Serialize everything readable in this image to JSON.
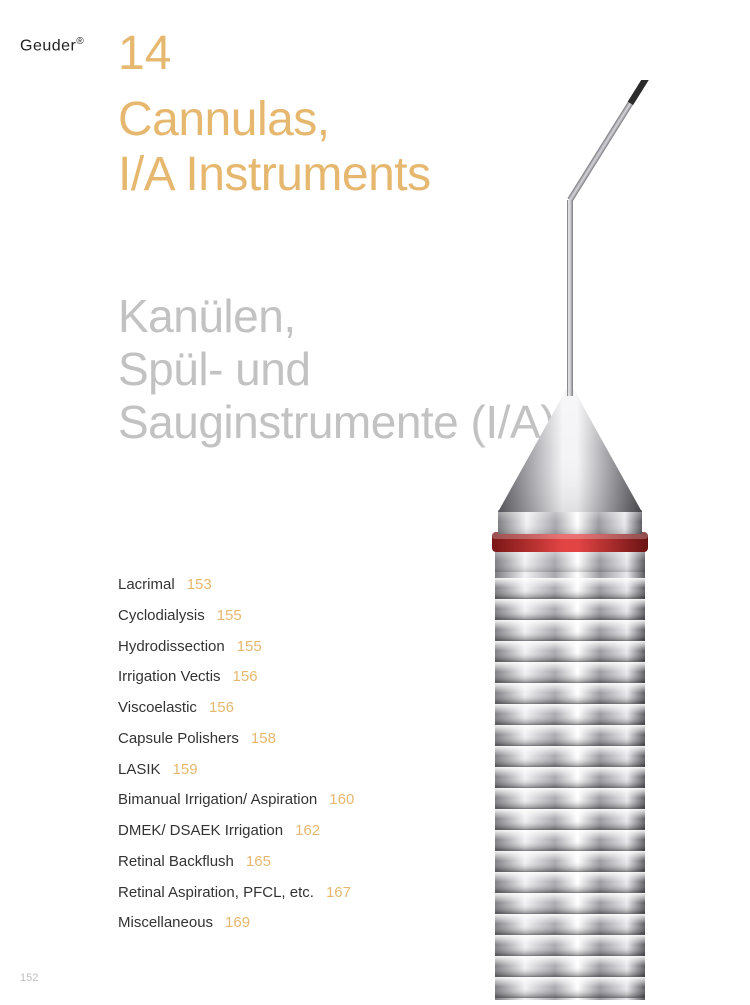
{
  "brand": {
    "name": "Geuder",
    "reg": "®"
  },
  "chapter_number": "14",
  "title_en": "Cannulas,\nI/A Instruments",
  "title_de": "Kanülen,\nSpül- und\nSauginstrumente (I/A)",
  "toc": [
    {
      "label": "Lacrimal",
      "page": "153"
    },
    {
      "label": "Cyclodialysis",
      "page": "155"
    },
    {
      "label": "Hydrodissection",
      "page": "155"
    },
    {
      "label": "Irrigation Vectis",
      "page": "156"
    },
    {
      "label": "Viscoelastic",
      "page": "156"
    },
    {
      "label": "Capsule Polishers",
      "page": "158"
    },
    {
      "label": "LASIK",
      "page": "159"
    },
    {
      "label": "Bimanual Irrigation/ Aspiration",
      "page": "160"
    },
    {
      "label": "DMEK/ DSAEK Irrigation",
      "page": "162"
    },
    {
      "label": "Retinal Backflush",
      "page": "165"
    },
    {
      "label": "Retinal Aspiration, PFCL, etc.",
      "page": "167"
    },
    {
      "label": "Miscellaneous",
      "page": "169"
    }
  ],
  "page_number": "152",
  "colors": {
    "accent": "#e6b86f",
    "muted": "#c2c2c2",
    "text": "#333333",
    "background": "#ffffff",
    "instrument_red_ring": "#c22f2f",
    "instrument_steel_light": "#f6f6f8",
    "instrument_steel_mid": "#c8c8cc",
    "instrument_steel_dark": "#56565c",
    "instrument_tip_dark": "#2b2b2b",
    "instrument_needle": "#9a9a9e"
  },
  "typography": {
    "chapter_num_fontsize": 48,
    "title_fontsize": 48,
    "subtitle_fontsize": 46,
    "toc_fontsize": 15,
    "brand_fontsize": 16,
    "pagenum_fontsize": 11,
    "font_weight_light": 300,
    "font_weight_regular": 400
  },
  "instrument": {
    "type": "surgical_cannula_handle",
    "handle_ribs": 20,
    "needle_bend_angle_deg": 35
  }
}
